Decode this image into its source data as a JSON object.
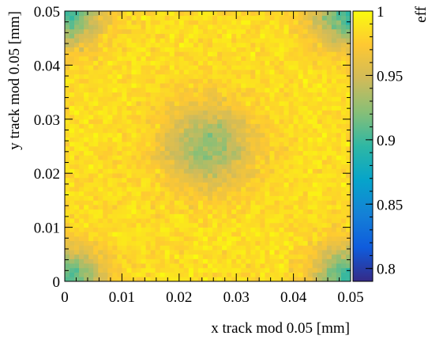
{
  "chart_data": {
    "type": "heatmap",
    "title": "",
    "xlabel": "x track mod 0.05 [mm]",
    "ylabel": "y track mod 0.05 [mm]",
    "zlabel": "eff",
    "xlim": [
      0,
      0.05
    ],
    "ylim": [
      0,
      0.05
    ],
    "zlim": [
      0.79,
      1.0
    ],
    "x_ticks": [
      "0",
      "0.01",
      "0.02",
      "0.03",
      "0.04",
      "0.05"
    ],
    "y_ticks": [
      "0",
      "0.01",
      "0.02",
      "0.03",
      "0.04",
      "0.05"
    ],
    "z_ticks": [
      "0.8",
      "0.85",
      "0.9",
      "0.95",
      "1"
    ],
    "bins": [
      60,
      60
    ],
    "model": {
      "description": "Efficiency map per pixel cell: high everywhere, reduced near the four corners and in a central spot",
      "baseline": 0.985,
      "corner_dips": [
        {
          "x": 0.0,
          "y": 0.0,
          "depth": 0.085,
          "sigma": 0.0045
        },
        {
          "x": 0.05,
          "y": 0.0,
          "depth": 0.09,
          "sigma": 0.0045
        },
        {
          "x": 0.0,
          "y": 0.05,
          "depth": 0.085,
          "sigma": 0.0045
        },
        {
          "x": 0.05,
          "y": 0.05,
          "depth": 0.09,
          "sigma": 0.0045
        }
      ],
      "center_dip": {
        "x": 0.025,
        "y": 0.025,
        "depth": 0.06,
        "sigma": 0.0055
      },
      "noise": 0.02
    },
    "colormap": [
      "#352a87",
      "#0f5cdd",
      "#1481d6",
      "#06a4ca",
      "#2eb7a4",
      "#87bf77",
      "#d1bb59",
      "#fec832",
      "#f9fb0e"
    ]
  }
}
